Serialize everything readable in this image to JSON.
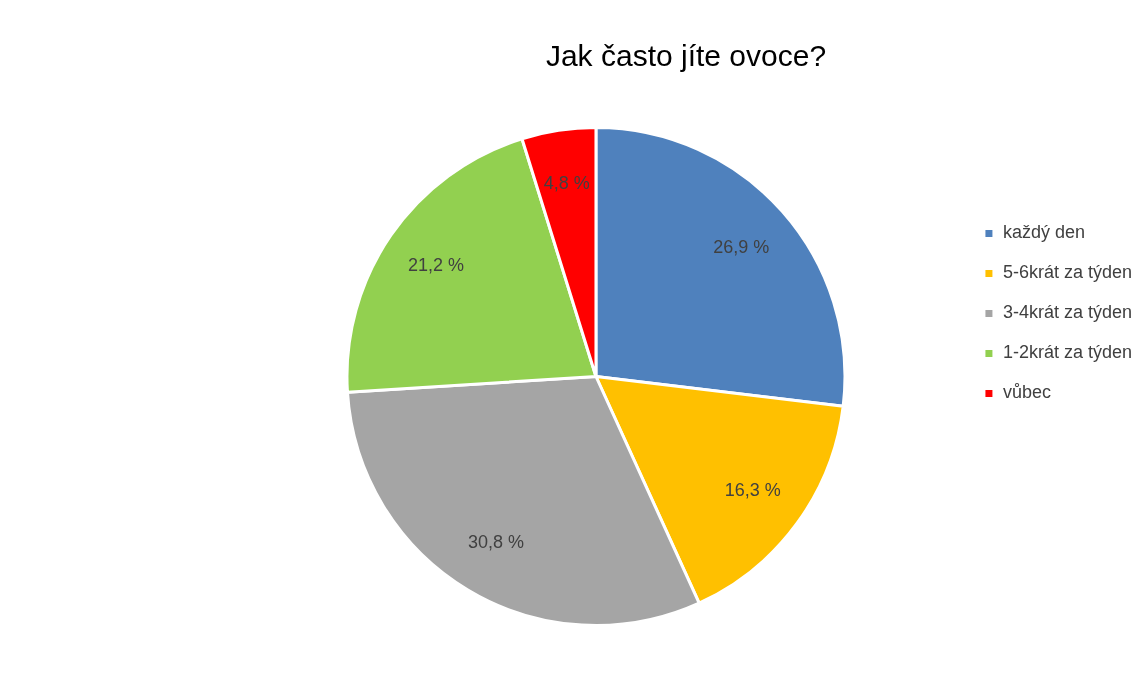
{
  "chart_data": {
    "type": "pie",
    "title": "Jak často jíte ovoce?",
    "categories": [
      "každý den",
      "5-6krát za týden",
      "3-4krát za týden",
      "1-2krát za týden",
      "vůbec"
    ],
    "values": [
      26.9,
      16.3,
      30.8,
      21.2,
      4.8
    ],
    "colors": [
      "#4f81bd",
      "#ffc000",
      "#a5a5a5",
      "#92d050",
      "#ff0000"
    ],
    "value_labels": [
      "26,9 %",
      "16,3 %",
      "30,8 %",
      "21,2 %",
      "4,8 %"
    ],
    "legend": "right"
  }
}
